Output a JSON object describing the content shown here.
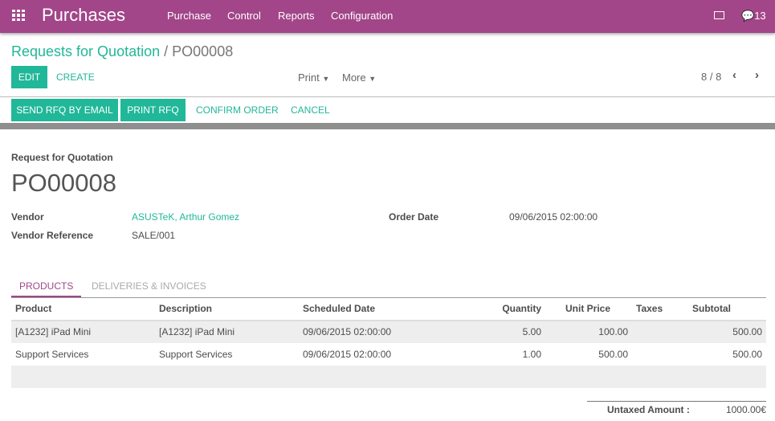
{
  "navbar": {
    "app_title": "Purchases",
    "menu": [
      "Purchase",
      "Control",
      "Reports",
      "Configuration"
    ],
    "message_count": "13",
    "color": "#a24689"
  },
  "breadcrumb": {
    "parent": "Requests for Quotation",
    "separator": "/",
    "current": "PO00008"
  },
  "toolbar": {
    "edit": "EDIT",
    "create": "CREATE",
    "print": "Print",
    "more": "More",
    "pager": "8 / 8"
  },
  "statusbar": {
    "buttons": [
      "SEND RFQ BY EMAIL",
      "PRINT RFQ",
      "CONFIRM ORDER",
      "CANCEL"
    ]
  },
  "form": {
    "subtitle": "Request for Quotation",
    "name": "PO00008",
    "vendor_label": "Vendor",
    "vendor": "ASUSTeK, Arthur Gomez",
    "vendor_ref_label": "Vendor Reference",
    "vendor_ref": "SALE/001",
    "order_date_label": "Order Date",
    "order_date": "09/06/2015 02:00:00"
  },
  "tabs": [
    "PRODUCTS",
    "DELIVERIES & INVOICES"
  ],
  "table": {
    "headers": [
      "Product",
      "Description",
      "Scheduled Date",
      "Quantity",
      "Unit Price",
      "Taxes",
      "Subtotal"
    ],
    "rows": [
      [
        "[A1232] iPad Mini",
        "[A1232] iPad Mini",
        "09/06/2015 02:00:00",
        "5.00",
        "100.00",
        "",
        "500.00"
      ],
      [
        "Support Services",
        "Support Services",
        "09/06/2015 02:00:00",
        "1.00",
        "500.00",
        "",
        "500.00"
      ]
    ]
  },
  "totals": {
    "untaxed_label": "Untaxed Amount :",
    "untaxed": "1000.00€"
  },
  "accent": "#21b799"
}
